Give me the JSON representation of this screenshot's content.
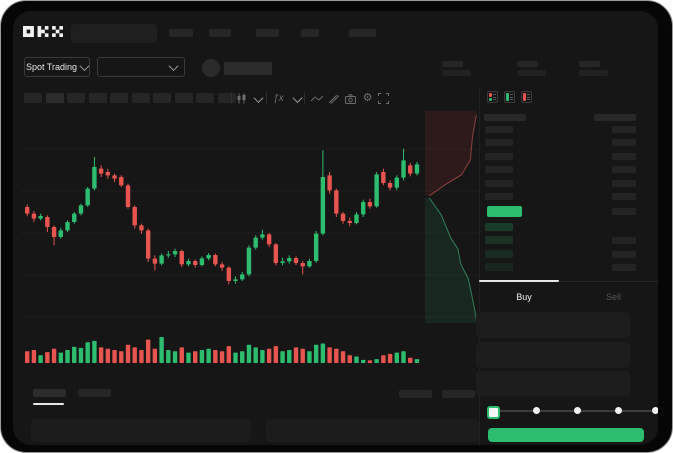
{
  "header": {
    "logo": "OKX"
  },
  "subheader": {
    "market_selector_label": "Spot Trading"
  },
  "toolbar": {
    "icons": [
      "candlestick-style-icon",
      "interval-chevron-icon",
      "indicators-icon",
      "indicators-chevron-icon",
      "line-tool-icon",
      "draw-tool-icon",
      "camera-icon",
      "settings-icon",
      "fullscreen-icon"
    ],
    "indicators_glyph": "ƒx",
    "settings_glyph": "⚙"
  },
  "colors": {
    "green": "#2dbd6e",
    "red": "#e8554f",
    "bid_row_green": "rgba(45,189,110,0.22)",
    "depth_ask_fill": "rgba(190,60,60,0.14)",
    "depth_bid_fill": "rgba(45,170,110,0.12)",
    "depth_ask_line": "rgba(230,100,95,0.55)",
    "depth_bid_line": "rgba(70,210,140,0.55)"
  },
  "orderbook": {
    "view_icons": [
      "book-combined-icon",
      "book-bids-icon",
      "book-asks-icon"
    ],
    "ask_rows": 6,
    "bid_rows": 4
  },
  "trade_panel": {
    "tabs": [
      {
        "label": "Buy"
      },
      {
        "label": "Sell"
      }
    ],
    "slider_stops": 5
  },
  "chart_data": {
    "type": "candlestick",
    "title": "",
    "xlabel": "",
    "ylabel": "",
    "ylim": [
      30,
      90
    ],
    "grid": true,
    "legend": false,
    "candles": [
      [
        63,
        61,
        63.8,
        60.2
      ],
      [
        61,
        59.5,
        61.8,
        58.5
      ],
      [
        59.5,
        60.3,
        61,
        59
      ],
      [
        60,
        57,
        60.5,
        55.5
      ],
      [
        57,
        54,
        57.5,
        51.5
      ],
      [
        54,
        56,
        56.8,
        53.5
      ],
      [
        56,
        58.5,
        59,
        55.5
      ],
      [
        58.5,
        61,
        61.5,
        58
      ],
      [
        61,
        63.5,
        64,
        60.5
      ],
      [
        63.5,
        68.5,
        69,
        63
      ],
      [
        68.5,
        75,
        78,
        68
      ],
      [
        74.5,
        73,
        75.5,
        72
      ],
      [
        73.5,
        72.5,
        74.5,
        71.5
      ],
      [
        72.5,
        71.5,
        73,
        70.5
      ],
      [
        72,
        69.5,
        72.5,
        69
      ],
      [
        69.5,
        63,
        70,
        62.5
      ],
      [
        63,
        57.5,
        63.5,
        56.5
      ],
      [
        57.5,
        56,
        58,
        55
      ],
      [
        56,
        47.5,
        56.5,
        46.5
      ],
      [
        47.5,
        46,
        48.5,
        44
      ],
      [
        46,
        48.5,
        49,
        45.5
      ],
      [
        48.5,
        48.8,
        49.8,
        47.8
      ],
      [
        48.8,
        49.8,
        50.5,
        48
      ],
      [
        49.8,
        45.8,
        50.2,
        45
      ],
      [
        45.8,
        46.8,
        47.5,
        45.2
      ],
      [
        46.8,
        45.6,
        47.2,
        44.8
      ],
      [
        45.6,
        47.6,
        48.2,
        45.2
      ],
      [
        47.6,
        48.6,
        49.2,
        47
      ],
      [
        48.6,
        45.8,
        49,
        45.2
      ],
      [
        45.8,
        44.8,
        46.5,
        43.8
      ],
      [
        44.8,
        40.8,
        45.2,
        39.8
      ],
      [
        40.8,
        41.3,
        42.2,
        40
      ],
      [
        41.3,
        42.8,
        43.5,
        40.8
      ],
      [
        42.8,
        50.8,
        51.5,
        42.2
      ],
      [
        50.8,
        53.8,
        54.5,
        50.2
      ],
      [
        53.8,
        54.8,
        56.2,
        53.2
      ],
      [
        54.8,
        51.8,
        55.2,
        51
      ],
      [
        51.8,
        46.2,
        52.2,
        45.5
      ],
      [
        46.2,
        46.7,
        47.8,
        45.5
      ],
      [
        46.7,
        47.7,
        48.5,
        46
      ],
      [
        47.7,
        46.2,
        48.2,
        45.6
      ],
      [
        46.2,
        45.2,
        46.8,
        42.8
      ],
      [
        45.2,
        46.8,
        47.5,
        44.8
      ],
      [
        46.8,
        55,
        55.8,
        46.2
      ],
      [
        55,
        72,
        80,
        54.5
      ],
      [
        72.5,
        68,
        73.5,
        67
      ],
      [
        68,
        61,
        68.5,
        60
      ],
      [
        61,
        58.8,
        61.5,
        58
      ],
      [
        58.8,
        58.2,
        59.8,
        57.2
      ],
      [
        58.2,
        60.8,
        61.5,
        57.8
      ],
      [
        60.8,
        64.5,
        65.2,
        60
      ],
      [
        64.5,
        63.2,
        65.5,
        62.5
      ],
      [
        63.2,
        72.8,
        73.5,
        62.8
      ],
      [
        73.5,
        70.2,
        74.5,
        69.5
      ],
      [
        70.2,
        68.8,
        71,
        68
      ],
      [
        68.8,
        71.8,
        72.5,
        68
      ],
      [
        71.8,
        77,
        80.5,
        71
      ],
      [
        75.5,
        73,
        76.2,
        72.2
      ],
      [
        73,
        75.8,
        76.5,
        72.5
      ]
    ],
    "volume": [
      0.45,
      0.5,
      0.3,
      0.42,
      0.55,
      0.4,
      0.5,
      0.62,
      0.58,
      0.8,
      0.85,
      0.6,
      0.55,
      0.5,
      0.45,
      0.7,
      0.6,
      0.5,
      0.9,
      0.55,
      1.0,
      0.5,
      0.45,
      0.6,
      0.4,
      0.45,
      0.5,
      0.55,
      0.5,
      0.45,
      0.65,
      0.4,
      0.45,
      0.7,
      0.6,
      0.5,
      0.55,
      0.65,
      0.45,
      0.5,
      0.6,
      0.55,
      0.45,
      0.7,
      0.75,
      0.6,
      0.55,
      0.45,
      0.3,
      0.25,
      0.12,
      0.1,
      0.15,
      0.3,
      0.35,
      0.4,
      0.45,
      0.2,
      0.15
    ],
    "depth": {
      "asks_curve": [
        [
          0.95,
          0.02
        ],
        [
          0.88,
          0.12
        ],
        [
          0.84,
          0.23
        ],
        [
          0.68,
          0.3
        ],
        [
          0.36,
          0.35
        ],
        [
          0.08,
          0.4
        ]
      ],
      "bids_curve": [
        [
          0.08,
          0.41
        ],
        [
          0.3,
          0.49
        ],
        [
          0.48,
          0.6
        ],
        [
          0.61,
          0.65
        ],
        [
          0.66,
          0.72
        ],
        [
          0.8,
          0.79
        ],
        [
          0.86,
          0.86
        ],
        [
          0.93,
          0.95
        ],
        [
          0.96,
          1.0
        ]
      ]
    }
  }
}
